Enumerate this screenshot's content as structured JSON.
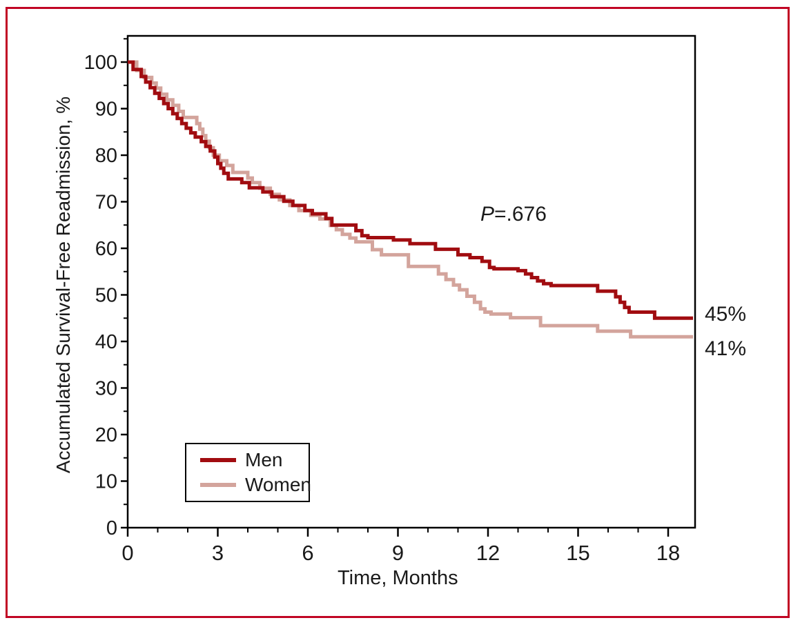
{
  "figure": {
    "frame_color": "#c10524",
    "background": "#ffffff",
    "axis_color": "#000000"
  },
  "annotation": {
    "p_symbol": "P",
    "p_rest": "=.676"
  },
  "end_labels": {
    "men": "45%",
    "women": "41%"
  },
  "chart_data": {
    "type": "line",
    "style": "kaplan-meier-step",
    "title": "",
    "xlabel": "Time, Months",
    "ylabel": "Accumulated Survival-Free Readmission, %",
    "xlim": [
      0,
      18.9
    ],
    "ylim": [
      0,
      105
    ],
    "x_major_ticks": [
      0,
      3,
      6,
      9,
      12,
      15,
      18
    ],
    "x_minor_tick_step": 1,
    "x_minor_tick_max": 18,
    "y_major_ticks": [
      0,
      10,
      20,
      30,
      40,
      50,
      60,
      70,
      80,
      90,
      100
    ],
    "y_minor_tick_step": 5,
    "y_minor_tick_max": 105,
    "grid": false,
    "legend_position": "lower-left-inside",
    "p_value_label": "P=.676",
    "series": [
      {
        "name": "Men",
        "color": "#a10c10",
        "end_label": "45%",
        "points": [
          [
            0,
            100
          ],
          [
            0.18,
            98.4
          ],
          [
            0.45,
            96.9
          ],
          [
            0.6,
            95.7
          ],
          [
            0.75,
            94.5
          ],
          [
            0.9,
            93.3
          ],
          [
            1.05,
            92.2
          ],
          [
            1.2,
            91.1
          ],
          [
            1.35,
            90
          ],
          [
            1.5,
            88.9
          ],
          [
            1.65,
            87.9
          ],
          [
            1.8,
            86.8
          ],
          [
            1.95,
            85.8
          ],
          [
            2.1,
            84.8
          ],
          [
            2.25,
            83.9
          ],
          [
            2.45,
            82.9
          ],
          [
            2.6,
            81.9
          ],
          [
            2.75,
            80.9
          ],
          [
            2.9,
            79.6
          ],
          [
            3,
            78.2
          ],
          [
            3.1,
            77.2
          ],
          [
            3.2,
            76.1
          ],
          [
            3.35,
            74.9
          ],
          [
            3.8,
            74.1
          ],
          [
            4.05,
            73
          ],
          [
            4.5,
            72.1
          ],
          [
            4.8,
            71.1
          ],
          [
            5.2,
            70.1
          ],
          [
            5.5,
            69.2
          ],
          [
            5.9,
            68.1
          ],
          [
            6.15,
            67.4
          ],
          [
            6.6,
            66.4
          ],
          [
            6.8,
            65
          ],
          [
            7.6,
            63.8
          ],
          [
            7.8,
            62.7
          ],
          [
            8,
            62.3
          ],
          [
            8.85,
            61.8
          ],
          [
            9.4,
            61
          ],
          [
            10.25,
            59.8
          ],
          [
            11,
            58.6
          ],
          [
            11.4,
            58
          ],
          [
            11.8,
            57.2
          ],
          [
            12.05,
            55.9
          ],
          [
            12.2,
            55.6
          ],
          [
            13,
            55.2
          ],
          [
            13.25,
            54.5
          ],
          [
            13.45,
            53.7
          ],
          [
            13.65,
            53
          ],
          [
            13.85,
            52.4
          ],
          [
            14.1,
            52
          ],
          [
            15.65,
            50.8
          ],
          [
            16.25,
            49.6
          ],
          [
            16.4,
            48.4
          ],
          [
            16.55,
            47.3
          ],
          [
            16.7,
            46.3
          ],
          [
            17.55,
            45
          ]
        ]
      },
      {
        "name": "Women",
        "color": "#d3a49c",
        "end_label": "41%",
        "points": [
          [
            0,
            100
          ],
          [
            0.3,
            98.2
          ],
          [
            0.55,
            96.7
          ],
          [
            0.8,
            95.5
          ],
          [
            0.95,
            94.4
          ],
          [
            1.1,
            93.1
          ],
          [
            1.3,
            91.9
          ],
          [
            1.5,
            90.7
          ],
          [
            1.7,
            89.4
          ],
          [
            1.85,
            88.1
          ],
          [
            2.3,
            86.8
          ],
          [
            2.4,
            85.6
          ],
          [
            2.5,
            84.2
          ],
          [
            2.6,
            83
          ],
          [
            2.72,
            81.6
          ],
          [
            2.85,
            80
          ],
          [
            3.05,
            78.8
          ],
          [
            3.3,
            77.8
          ],
          [
            3.5,
            76.3
          ],
          [
            4,
            75.1
          ],
          [
            4.15,
            74.1
          ],
          [
            4.4,
            72.9
          ],
          [
            4.75,
            71.6
          ],
          [
            5.05,
            70.4
          ],
          [
            5.4,
            69.2
          ],
          [
            5.7,
            68.1
          ],
          [
            6.1,
            67.1
          ],
          [
            6.4,
            66.3
          ],
          [
            6.75,
            64.9
          ],
          [
            6.95,
            64
          ],
          [
            7.15,
            63
          ],
          [
            7.4,
            62.2
          ],
          [
            7.6,
            61.4
          ],
          [
            8.15,
            59.7
          ],
          [
            8.45,
            58.6
          ],
          [
            9.35,
            56.1
          ],
          [
            10.35,
            54.5
          ],
          [
            10.6,
            53.3
          ],
          [
            10.85,
            52.1
          ],
          [
            11.05,
            51.1
          ],
          [
            11.3,
            49.7
          ],
          [
            11.55,
            48.4
          ],
          [
            11.75,
            47
          ],
          [
            11.9,
            46.3
          ],
          [
            12.1,
            45.9
          ],
          [
            12.75,
            45.1
          ],
          [
            13.75,
            43.4
          ],
          [
            15.65,
            42.2
          ],
          [
            16.75,
            41
          ]
        ]
      }
    ]
  }
}
